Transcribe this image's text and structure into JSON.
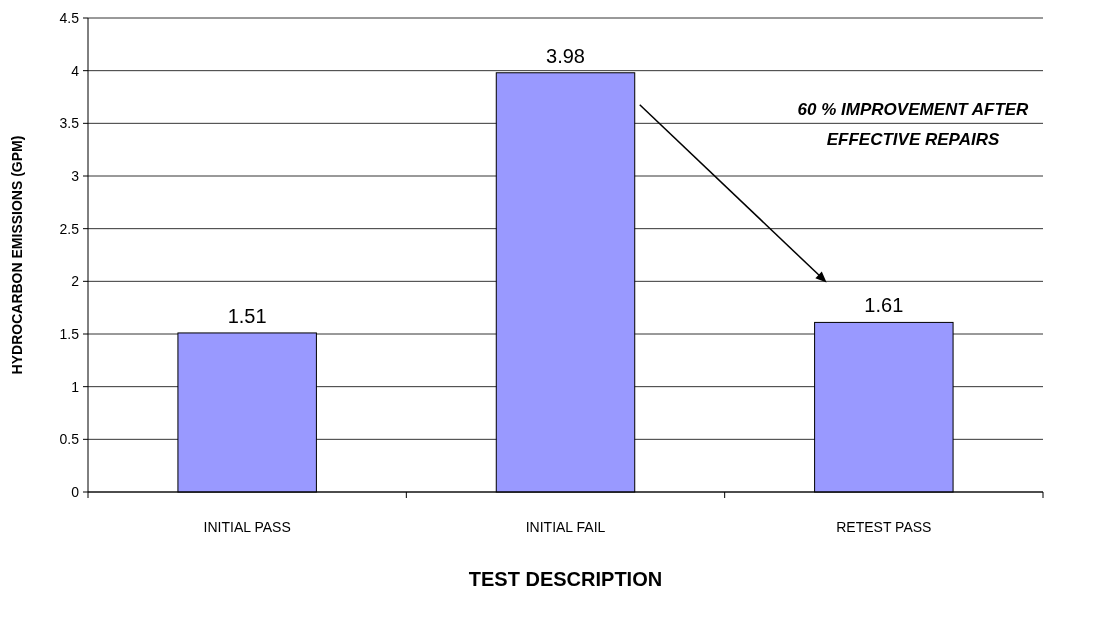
{
  "chart_data": {
    "type": "bar",
    "categories": [
      "INITIAL PASS",
      "INITIAL FAIL",
      "RETEST PASS"
    ],
    "values": [
      1.51,
      3.98,
      1.61
    ],
    "color": "#9999ff",
    "ylim": [
      0,
      4.5
    ],
    "yticks": [
      0,
      0.5,
      1,
      1.5,
      2,
      2.5,
      3,
      3.5,
      4,
      4.5
    ],
    "grid": "y",
    "data_labels": true,
    "xlabel": "TEST DESCRIPTION",
    "ylabel": "HYDROCARBON EMISSIONS (GPM)",
    "annotations": [
      "60 % IMPROVEMENT AFTER EFFECTIVE REPAIRS"
    ]
  }
}
